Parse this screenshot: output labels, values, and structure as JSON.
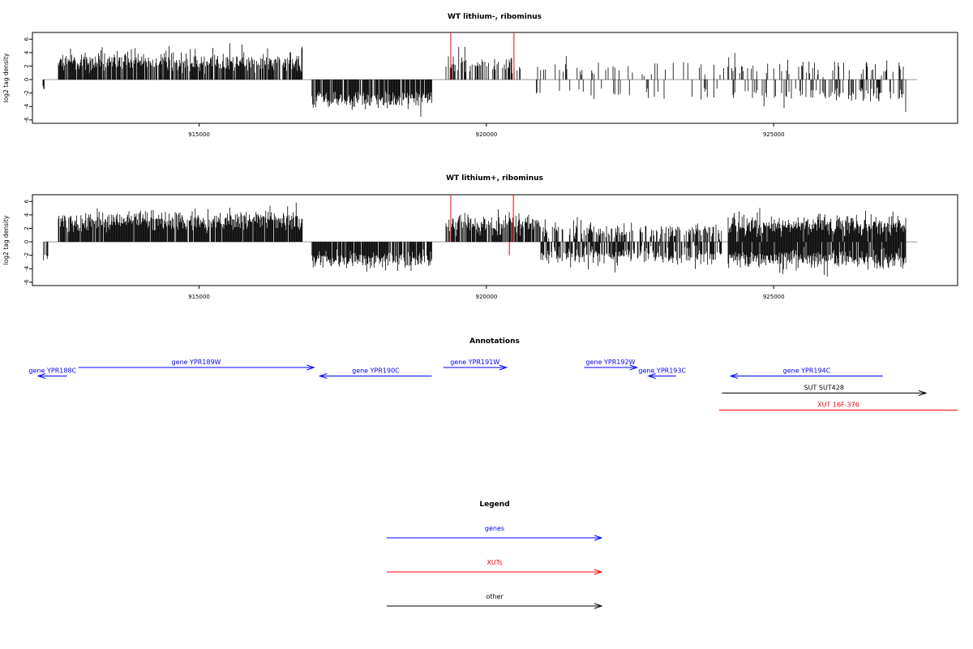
{
  "chart_data": [
    {
      "type": "bar",
      "title": "WT lithium-, ribominus",
      "ylabel": "log2 tag density",
      "xlim": [
        912100,
        928200
      ],
      "ylim": [
        -6.5,
        7
      ],
      "yticks": [
        -6,
        -4,
        -2,
        0,
        2,
        4,
        6
      ],
      "xticks": [
        915000,
        920000,
        925000
      ],
      "grid": false,
      "segments": [
        {
          "start": 912290,
          "end": 912400,
          "sign": -1,
          "mean": 1.2,
          "spread": 0.6,
          "density": 0.3
        },
        {
          "start": 912550,
          "end": 916800,
          "sign": 1,
          "mean": 2.6,
          "spread": 1.1,
          "density": 0.85
        },
        {
          "start": 916950,
          "end": 919050,
          "sign": -1,
          "mean": 2.9,
          "spread": 0.9,
          "density": 0.85
        },
        {
          "start": 919300,
          "end": 920600,
          "sign": 1,
          "mean": 2.2,
          "spread": 1.0,
          "density": 0.45
        },
        {
          "start": 920850,
          "end": 924200,
          "sign": 1,
          "mean": 1.7,
          "spread": 0.8,
          "density": 0.12
        },
        {
          "start": 920850,
          "end": 924200,
          "sign": -1,
          "mean": 2.0,
          "spread": 0.8,
          "density": 0.12
        },
        {
          "start": 924200,
          "end": 927300,
          "sign": 1,
          "mean": 1.8,
          "spread": 0.9,
          "density": 0.22
        },
        {
          "start": 924200,
          "end": 927300,
          "sign": -1,
          "mean": 2.2,
          "spread": 0.9,
          "density": 0.3
        }
      ],
      "highlights": [
        {
          "x": 919380,
          "from": 0,
          "to": 7,
          "color": "#ff0000"
        },
        {
          "x": 920480,
          "from": 0,
          "to": 7,
          "color": "#ff0000"
        }
      ],
      "bar_color": "#000000",
      "baseline_color": "#999999"
    },
    {
      "type": "bar",
      "title": "WT lithium+, ribominus",
      "ylabel": "log2 tag density",
      "xlim": [
        912100,
        928200
      ],
      "ylim": [
        -6.5,
        7
      ],
      "yticks": [
        -6,
        -4,
        -2,
        0,
        2,
        4,
        6
      ],
      "xticks": [
        915000,
        920000,
        925000
      ],
      "grid": false,
      "segments": [
        {
          "start": 912290,
          "end": 912400,
          "sign": -1,
          "mean": 2.2,
          "spread": 0.6,
          "density": 0.35
        },
        {
          "start": 912550,
          "end": 916800,
          "sign": 1,
          "mean": 3.1,
          "spread": 1.1,
          "density": 0.95
        },
        {
          "start": 916950,
          "end": 919050,
          "sign": -1,
          "mean": 2.6,
          "spread": 0.9,
          "density": 0.85
        },
        {
          "start": 919300,
          "end": 920950,
          "sign": 1,
          "mean": 2.6,
          "spread": 1.1,
          "density": 0.8
        },
        {
          "start": 920950,
          "end": 924100,
          "sign": 1,
          "mean": 1.6,
          "spread": 0.8,
          "density": 0.5
        },
        {
          "start": 920950,
          "end": 924100,
          "sign": -1,
          "mean": 1.9,
          "spread": 0.9,
          "density": 0.65
        },
        {
          "start": 924200,
          "end": 927300,
          "sign": 1,
          "mean": 2.4,
          "spread": 1.0,
          "density": 0.95
        },
        {
          "start": 924200,
          "end": 927300,
          "sign": -1,
          "mean": 2.5,
          "spread": 1.0,
          "density": 0.95
        }
      ],
      "highlights": [
        {
          "x": 919380,
          "from": 0,
          "to": 7,
          "color": "#ff0000"
        },
        {
          "x": 920470,
          "from": 0,
          "to": 7,
          "color": "#ff0000"
        },
        {
          "x": 920400,
          "from": -2,
          "to": 0,
          "color": "#ff0000"
        }
      ],
      "bar_color": "#000000",
      "baseline_color": "#999999"
    }
  ],
  "annotations": {
    "title": "Annotations",
    "xlim": [
      912100,
      928200
    ],
    "features": [
      {
        "label": "gene YPR188C",
        "start": 912200,
        "end": 912700,
        "strand": "-",
        "row": 1,
        "color": "#0000ff"
      },
      {
        "label": "gene YPR189W",
        "start": 912900,
        "end": 917000,
        "strand": "+",
        "row": 0,
        "color": "#0000ff"
      },
      {
        "label": "gene YPR190C",
        "start": 917100,
        "end": 919050,
        "strand": "-",
        "row": 1,
        "color": "#0000ff"
      },
      {
        "label": "gene YPR191W",
        "start": 919250,
        "end": 920350,
        "strand": "+",
        "row": 0,
        "color": "#0000ff"
      },
      {
        "label": "gene YPR192W",
        "start": 921700,
        "end": 922620,
        "strand": "+",
        "row": 0,
        "color": "#0000ff"
      },
      {
        "label": "gene YPR193C",
        "start": 922820,
        "end": 923300,
        "strand": "-",
        "row": 1,
        "color": "#0000ff"
      },
      {
        "label": "gene YPR194C",
        "start": 924250,
        "end": 926900,
        "strand": "-",
        "row": 1,
        "color": "#0000ff"
      },
      {
        "label": "SUT SUT428",
        "start": 924100,
        "end": 927650,
        "strand": "+",
        "row": 3,
        "color": "#000000"
      },
      {
        "label": "XUT 16F-376",
        "start": 924050,
        "end": 928200,
        "strand": "none",
        "row": 5,
        "color": "#ff0000"
      }
    ]
  },
  "legend": {
    "title": "Legend",
    "items": [
      {
        "label": "genes",
        "color": "#0000ff"
      },
      {
        "label": "XUTs",
        "color": "#ff0000"
      },
      {
        "label": "other",
        "color": "#000000"
      }
    ]
  }
}
